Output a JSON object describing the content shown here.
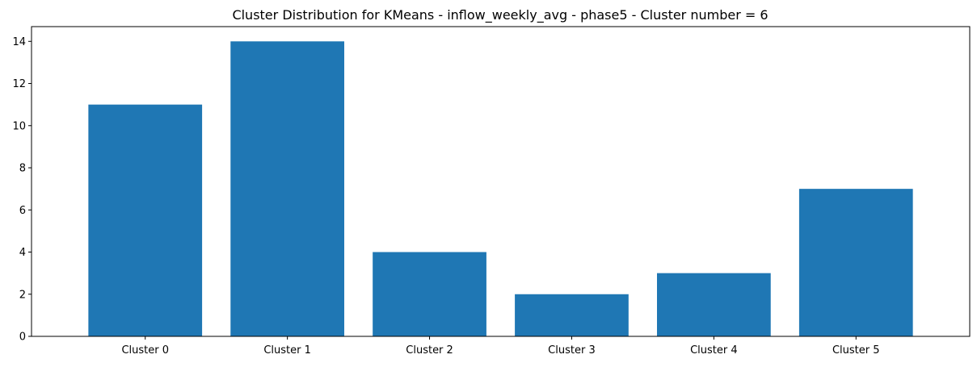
{
  "chart_data": {
    "type": "bar",
    "title": "Cluster Distribution for KMeans - inflow_weekly_avg - phase5 - Cluster number = 6",
    "xlabel": "",
    "ylabel": "",
    "categories": [
      "Cluster 0",
      "Cluster 1",
      "Cluster 2",
      "Cluster 3",
      "Cluster 4",
      "Cluster 5"
    ],
    "values": [
      11,
      14,
      4,
      2,
      3,
      7
    ],
    "ylim": [
      0,
      14.7
    ],
    "yticks": [
      0,
      2,
      4,
      6,
      8,
      10,
      12,
      14
    ],
    "bar_color": "#1f77b4",
    "grid": false,
    "legend": "none"
  }
}
